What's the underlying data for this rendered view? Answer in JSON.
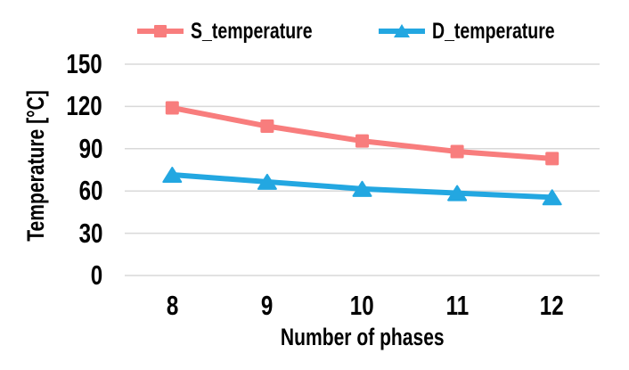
{
  "chart_data": {
    "type": "line",
    "x": [
      8,
      9,
      10,
      11,
      12
    ],
    "xlabel": "Number of phases",
    "ylabel": "Temperature [°C]",
    "ylim": [
      0,
      150
    ],
    "yticks": [
      0,
      30,
      60,
      90,
      120,
      150
    ],
    "grid": "horizontal",
    "gridline_color": "#D9D9D9",
    "text_color": "#000000",
    "background_color": "#FFFFFF",
    "legend_position": "top",
    "series": [
      {
        "name": "S_temperature",
        "color": "#F87D7D",
        "marker": "square",
        "values": [
          119,
          106,
          95.5,
          88,
          83
        ]
      },
      {
        "name": "D_temperature",
        "color": "#23A7E1",
        "marker": "triangle",
        "values": [
          71.5,
          66.5,
          61.5,
          58.5,
          55.5
        ]
      }
    ]
  }
}
